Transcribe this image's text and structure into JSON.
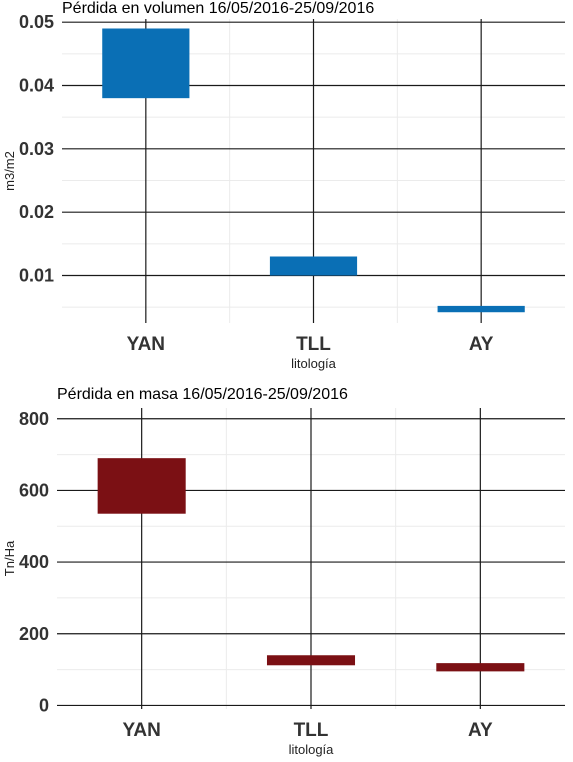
{
  "chart_data": [
    {
      "type": "bar",
      "title": "Pérdida en volumen 16/05/2016-25/09/2016",
      "xlabel": "litología",
      "ylabel": "m3/m2",
      "categories": [
        "YAN",
        "TLL",
        "AY"
      ],
      "ranges": [
        {
          "category": "YAN",
          "low": 0.038,
          "high": 0.049
        },
        {
          "category": "TLL",
          "low": 0.01,
          "high": 0.013
        },
        {
          "category": "AY",
          "low": 0.0042,
          "high": 0.0052
        }
      ],
      "ylim": [
        0.0025,
        0.0505
      ],
      "yticks": [
        "0.01",
        "0.02",
        "0.03",
        "0.04",
        "0.05"
      ],
      "yticks_values": [
        0.01,
        0.02,
        0.03,
        0.04,
        0.05
      ],
      "color": "#0a6fb5",
      "grid": true
    },
    {
      "type": "bar",
      "title": "Pérdida en masa 16/05/2016-25/09/2016",
      "xlabel": "litología",
      "ylabel": "Tn/Ha",
      "categories": [
        "YAN",
        "TLL",
        "AY"
      ],
      "ranges": [
        {
          "category": "YAN",
          "low": 535,
          "high": 690
        },
        {
          "category": "TLL",
          "low": 112,
          "high": 140
        },
        {
          "category": "AY",
          "low": 95,
          "high": 118
        }
      ],
      "ylim": [
        -10,
        830
      ],
      "yticks": [
        "0",
        "200",
        "400",
        "600",
        "800"
      ],
      "yticks_values": [
        0,
        200,
        400,
        600,
        800
      ],
      "color": "#7b1014",
      "grid": true
    }
  ]
}
